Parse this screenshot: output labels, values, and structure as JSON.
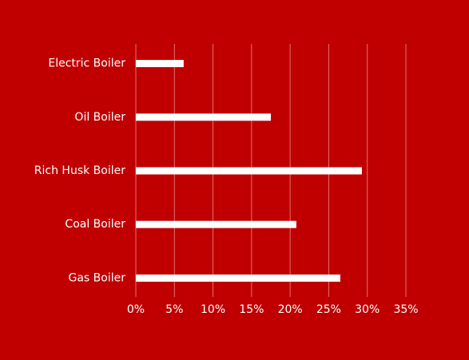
{
  "chart_data": {
    "type": "bar",
    "orientation": "horizontal",
    "categories": [
      "Electric Boiler",
      "Oil Boiler",
      "Rich Husk Boiler",
      "Coal Boiler",
      "Gas Boiler"
    ],
    "values": [
      6.2,
      17.5,
      29.3,
      20.8,
      26.5
    ],
    "color": "#ffffff",
    "xlim": [
      0,
      35
    ],
    "xticks": [
      {
        "value": 0,
        "label": "0%"
      },
      {
        "value": 5,
        "label": "5%"
      },
      {
        "value": 10,
        "label": "10%"
      },
      {
        "value": 15,
        "label": "15%"
      },
      {
        "value": 20,
        "label": "20%"
      },
      {
        "value": 25,
        "label": "25%"
      },
      {
        "value": 30,
        "label": "30%"
      },
      {
        "value": 35,
        "label": "35%"
      }
    ],
    "grid": true
  }
}
